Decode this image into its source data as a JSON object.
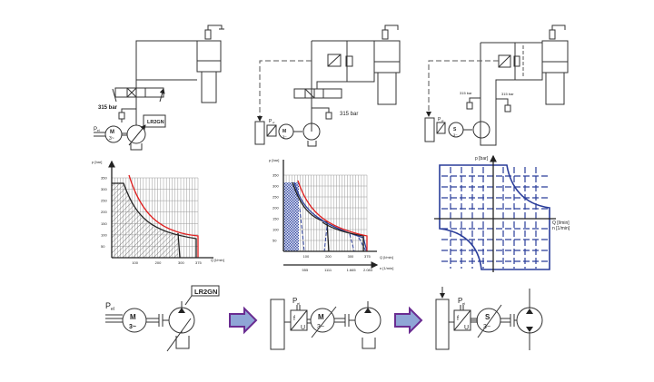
{
  "circuits": [
    {
      "pressure_label": "315 bar",
      "controller_label": "LR2GN",
      "power_label": "P",
      "power_sub": "el",
      "motor_label": "M",
      "motor_phase": "3~"
    },
    {
      "pressure_label": "315 bar",
      "power_label": "P",
      "power_sub": "el",
      "motor_label": "M",
      "motor_phase": "3~"
    },
    {
      "pressure_label_1": "315 bar",
      "pressure_label_2": "315 bar",
      "power_label": "P",
      "power_sub": "el",
      "motor_label": "S",
      "motor_phase": "3~"
    }
  ],
  "charts": [
    {
      "ylabel": "p [bar]",
      "xlabel": "Q [l/min]",
      "yticks": [
        "50",
        "100",
        "150",
        "200",
        "250",
        "300",
        "350"
      ],
      "xticks": [
        "100",
        "200",
        "300",
        "375"
      ]
    },
    {
      "ylabel": "p [bar]",
      "xlabel": "Q [l/min]",
      "xlabel2": "n [1/min]",
      "yticks": [
        "50",
        "100",
        "150",
        "200",
        "250",
        "300",
        "350"
      ],
      "xticks": [
        "100",
        "200",
        "300",
        "375"
      ],
      "xticks2": [
        "555",
        "1111",
        "1.665",
        "2.083"
      ]
    },
    {
      "ylabel": "p [bar]",
      "xlabel": "Q [l/min]",
      "xlabel2": "n [1/min]"
    }
  ],
  "bottom": {
    "controller_label": "LR2GN",
    "power_label": "P",
    "power_sub": "el",
    "motor1_label": "M",
    "motor1_phase": "3~",
    "motor2_label": "M",
    "motor2_phase": "3~",
    "motor3_label": "S",
    "motor3_phase": "3~",
    "converter_f": "f",
    "converter_u": "U"
  },
  "colors": {
    "red": "#e02020",
    "blue": "#2a3d9a",
    "arrow_fill": "#8fa6d6",
    "arrow_stroke": "#6a2c91"
  }
}
